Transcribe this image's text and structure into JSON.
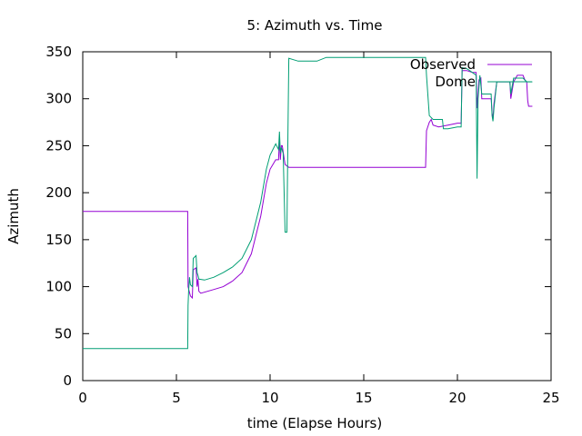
{
  "chart_data": {
    "type": "line",
    "title": "5: Azimuth vs. Time",
    "xlabel": "time (Elapse Hours)",
    "ylabel": "Azimuth",
    "xlim": [
      0,
      25
    ],
    "ylim": [
      0,
      350
    ],
    "x_ticks": [
      0,
      5,
      10,
      15,
      20,
      25
    ],
    "x_tick_labels": [
      "0",
      "5",
      "10",
      "15",
      "20",
      "25"
    ],
    "y_ticks": [
      0,
      50,
      100,
      150,
      200,
      250,
      300,
      350
    ],
    "y_tick_labels": [
      "0",
      "50",
      "100",
      "150",
      "200",
      "250",
      "300",
      "350"
    ],
    "grid": false,
    "legend_position": "top-right",
    "series": [
      {
        "name": "Observed",
        "color": "#9400d3",
        "points": [
          [
            0,
            180
          ],
          [
            5.6,
            180
          ],
          [
            5.62,
            100
          ],
          [
            5.75,
            90
          ],
          [
            5.85,
            88
          ],
          [
            5.9,
            118
          ],
          [
            6.05,
            120
          ],
          [
            6.1,
            100
          ],
          [
            6.15,
            108
          ],
          [
            6.2,
            95
          ],
          [
            6.3,
            93
          ],
          [
            7,
            97
          ],
          [
            7.5,
            100
          ],
          [
            8,
            106
          ],
          [
            8.5,
            115
          ],
          [
            9,
            135
          ],
          [
            9.5,
            175
          ],
          [
            9.8,
            210
          ],
          [
            10,
            225
          ],
          [
            10.3,
            235
          ],
          [
            10.45,
            235
          ],
          [
            10.5,
            258
          ],
          [
            10.55,
            235
          ],
          [
            10.6,
            250
          ],
          [
            10.65,
            250
          ],
          [
            10.75,
            237
          ],
          [
            10.8,
            230
          ],
          [
            11,
            227
          ],
          [
            12,
            227
          ],
          [
            14,
            227
          ],
          [
            16,
            227
          ],
          [
            18.3,
            227
          ],
          [
            18.35,
            266
          ],
          [
            18.5,
            275
          ],
          [
            18.6,
            278
          ],
          [
            18.7,
            272
          ],
          [
            19,
            270
          ],
          [
            19.5,
            272
          ],
          [
            20,
            274
          ],
          [
            20.2,
            274
          ],
          [
            20.25,
            330
          ],
          [
            20.5,
            330
          ],
          [
            20.8,
            328
          ],
          [
            21,
            328
          ],
          [
            21.05,
            290
          ],
          [
            21.15,
            320
          ],
          [
            21.25,
            322
          ],
          [
            21.3,
            300
          ],
          [
            21.5,
            300
          ],
          [
            21.8,
            300
          ],
          [
            21.85,
            285
          ],
          [
            21.9,
            278
          ],
          [
            21.95,
            295
          ],
          [
            22.1,
            318
          ],
          [
            22.5,
            318
          ],
          [
            22.8,
            318
          ],
          [
            22.85,
            300
          ],
          [
            23,
            318
          ],
          [
            23.2,
            325
          ],
          [
            23.5,
            325
          ],
          [
            23.6,
            320
          ],
          [
            23.7,
            318
          ],
          [
            23.75,
            298
          ],
          [
            23.8,
            292
          ],
          [
            24,
            292
          ]
        ]
      },
      {
        "name": "Dome",
        "color": "#009e73",
        "points": [
          [
            0,
            34
          ],
          [
            5.6,
            34
          ],
          [
            5.62,
            80
          ],
          [
            5.65,
            95
          ],
          [
            5.7,
            110
          ],
          [
            5.75,
            102
          ],
          [
            5.85,
            100
          ],
          [
            5.9,
            130
          ],
          [
            6.05,
            133
          ],
          [
            6.1,
            115
          ],
          [
            6.15,
            112
          ],
          [
            6.2,
            108
          ],
          [
            6.5,
            107
          ],
          [
            7,
            110
          ],
          [
            7.5,
            115
          ],
          [
            8,
            121
          ],
          [
            8.5,
            130
          ],
          [
            9,
            150
          ],
          [
            9.5,
            190
          ],
          [
            9.8,
            225
          ],
          [
            10,
            240
          ],
          [
            10.3,
            252
          ],
          [
            10.45,
            246
          ],
          [
            10.5,
            265
          ],
          [
            10.55,
            242
          ],
          [
            10.6,
            248
          ],
          [
            10.7,
            242
          ],
          [
            10.8,
            158
          ],
          [
            10.9,
            158
          ],
          [
            10.95,
            260
          ],
          [
            11,
            343
          ],
          [
            11.5,
            340
          ],
          [
            12,
            340
          ],
          [
            12.5,
            340
          ],
          [
            13,
            344
          ],
          [
            14,
            344
          ],
          [
            15,
            344
          ],
          [
            16,
            344
          ],
          [
            17,
            344
          ],
          [
            18.3,
            344
          ],
          [
            18.35,
            325
          ],
          [
            18.5,
            282
          ],
          [
            18.7,
            278
          ],
          [
            19,
            278
          ],
          [
            19.2,
            278
          ],
          [
            19.25,
            268
          ],
          [
            19.5,
            268
          ],
          [
            20,
            270
          ],
          [
            20.2,
            270
          ],
          [
            20.25,
            333
          ],
          [
            20.5,
            332
          ],
          [
            20.8,
            328
          ],
          [
            21,
            325
          ],
          [
            21.05,
            215
          ],
          [
            21.1,
            300
          ],
          [
            21.2,
            325
          ],
          [
            21.3,
            305
          ],
          [
            21.5,
            305
          ],
          [
            21.8,
            305
          ],
          [
            21.85,
            282
          ],
          [
            21.9,
            276
          ],
          [
            21.95,
            290
          ],
          [
            22.1,
            318
          ],
          [
            22.5,
            318
          ],
          [
            22.8,
            318
          ],
          [
            22.85,
            305
          ],
          [
            23,
            322
          ],
          [
            23.2,
            322
          ],
          [
            23.5,
            322
          ],
          [
            23.7,
            318
          ],
          [
            24,
            318
          ]
        ]
      }
    ]
  }
}
